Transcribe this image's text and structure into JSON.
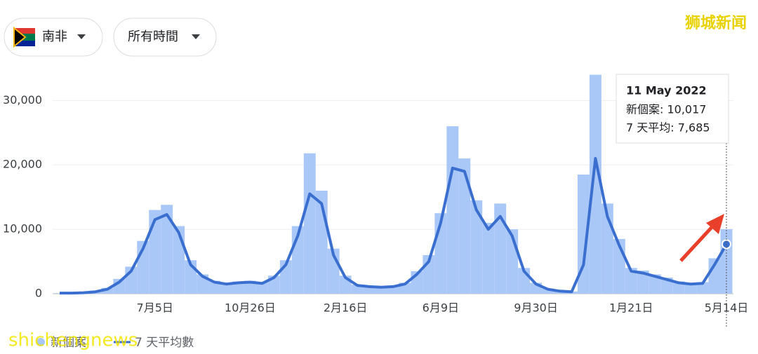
{
  "filters": {
    "region": "南非",
    "period": "所有時間"
  },
  "watermark": {
    "top": "狮城新闻",
    "bottom": "shichengnews"
  },
  "tooltip": {
    "date": "11 May 2022",
    "rows": [
      "新個案: 10,017",
      "7 天平均: 7,685"
    ]
  },
  "chart_data": {
    "type": "bar-line",
    "categories": [
      null,
      null,
      null,
      null,
      null,
      null,
      null,
      null,
      "7月5日",
      null,
      null,
      null,
      null,
      null,
      null,
      null,
      "10月26日",
      null,
      null,
      null,
      null,
      null,
      null,
      null,
      "2月16日",
      null,
      null,
      null,
      null,
      null,
      null,
      null,
      "6月9日",
      null,
      null,
      null,
      null,
      null,
      null,
      null,
      "9月30日",
      null,
      null,
      null,
      null,
      null,
      null,
      null,
      "1月21日",
      null,
      null,
      null,
      null,
      null,
      null,
      null,
      "5月14日"
    ],
    "series": [
      {
        "name": "新個案",
        "color": "#aac8f7",
        "values": [
          80,
          120,
          200,
          400,
          900,
          2300,
          4200,
          8200,
          13000,
          13800,
          10500,
          5200,
          3000,
          2000,
          1600,
          1900,
          2000,
          1800,
          2800,
          5200,
          10500,
          21800,
          16000,
          7000,
          2800,
          1400,
          1200,
          1100,
          1200,
          1700,
          3500,
          6000,
          12500,
          26000,
          21000,
          14500,
          11000,
          14000,
          10000,
          4000,
          1700,
          800,
          450,
          350,
          18500,
          34000,
          14000,
          8500,
          4000,
          3600,
          3000,
          2500,
          1900,
          1700,
          1800,
          5500,
          10017
        ]
      },
      {
        "name": "7 天平均數",
        "color": "#3a6fd0",
        "values": [
          100,
          100,
          150,
          300,
          700,
          1800,
          3500,
          7000,
          11500,
          12300,
          9500,
          4500,
          2700,
          1800,
          1500,
          1700,
          1800,
          1600,
          2500,
          4500,
          9000,
          15500,
          14000,
          6000,
          2500,
          1300,
          1100,
          1000,
          1100,
          1500,
          3000,
          5000,
          11000,
          19500,
          19000,
          13000,
          10000,
          12000,
          9000,
          3500,
          1500,
          700,
          400,
          300,
          4500,
          21000,
          12000,
          7500,
          3500,
          3200,
          2700,
          2200,
          1700,
          1500,
          1600,
          4500,
          7685
        ]
      }
    ],
    "ylim": [
      0,
      34500
    ],
    "yticks": [
      0,
      {
        "value": 10000,
        "label": "10,000"
      },
      {
        "value": 20000,
        "label": "20,000"
      },
      {
        "value": 30000,
        "label": "30,000"
      }
    ],
    "grid": true
  }
}
